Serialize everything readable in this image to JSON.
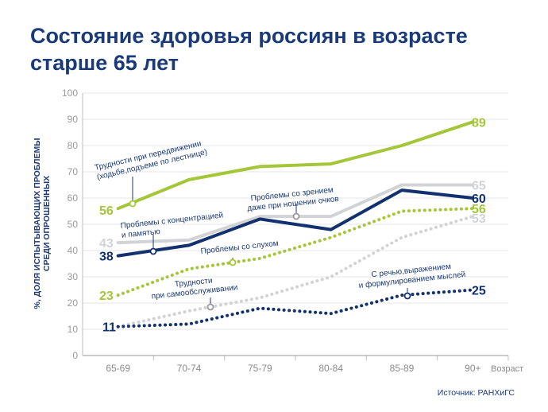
{
  "title": "Состояние здоровья россиян в возрасте старше 65 лет",
  "source": "Источник: РАНХиГС",
  "chart_data": {
    "type": "line",
    "ylabel": "%, доля испытывающих проблемы среди опрошенных",
    "xlabel": "Возраст",
    "ylim": [
      0,
      100
    ],
    "yticks": [
      0,
      10,
      20,
      30,
      40,
      50,
      60,
      70,
      80,
      90,
      100
    ],
    "categories": [
      "65-69",
      "70-74",
      "75-79",
      "80-84",
      "85-89",
      "90+"
    ],
    "grid": true,
    "series": [
      {
        "name": "Трудности при передвижении (ходьбе,подъеме по лестнице)",
        "values": [
          56,
          67,
          72,
          73,
          80,
          89
        ],
        "color": "#a4c638",
        "style": "solid",
        "start_label": "56",
        "end_label": "89"
      },
      {
        "name": "Проблемы со зрением даже при ношении очков",
        "values": [
          43,
          44,
          53,
          53,
          65,
          65
        ],
        "color": "#d2d3d5",
        "style": "solid",
        "start_label": "43",
        "end_label": "65"
      },
      {
        "name": "Проблемы с концентрацией и памятью",
        "values": [
          38,
          42,
          52,
          48,
          63,
          60
        ],
        "color": "#13316e",
        "style": "solid",
        "start_label": "38",
        "end_label": "60"
      },
      {
        "name": "Проблемы со слухом",
        "values": [
          23,
          33,
          37,
          45,
          55,
          56
        ],
        "color": "#a4c638",
        "style": "dotted",
        "start_label": "23",
        "end_label": "56"
      },
      {
        "name": "Трудности при самообслуживании",
        "values": [
          11,
          17,
          22,
          30,
          45,
          53
        ],
        "color": "#d2d3d5",
        "style": "dotted",
        "start_label": "",
        "end_label": "53"
      },
      {
        "name": "С речью,выражением и формулированием мыслей",
        "values": [
          11,
          12,
          18,
          16,
          23,
          25
        ],
        "color": "#13316e",
        "style": "dotted",
        "start_label": "11",
        "end_label": "25"
      }
    ],
    "annotations": [
      {
        "series": 0,
        "lines": [
          "Трудности при передвижении",
          "(ходьбе,подъеме по лестнице)"
        ]
      },
      {
        "series": 1,
        "lines": [
          "Проблемы со зрением",
          "даже при ношении очков"
        ]
      },
      {
        "series": 2,
        "lines": [
          "Проблемы с концентрацией",
          "и памятью"
        ]
      },
      {
        "series": 3,
        "lines": [
          "Проблемы со слухом"
        ]
      },
      {
        "series": 4,
        "lines": [
          "Трудности",
          "при самообслуживании"
        ]
      },
      {
        "series": 5,
        "lines": [
          "С речью,выражением",
          "и формулированием мыслей"
        ]
      }
    ]
  }
}
